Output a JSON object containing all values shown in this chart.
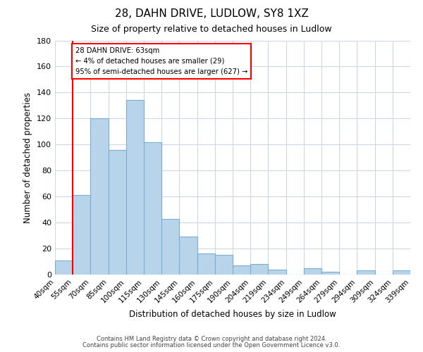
{
  "title": "28, DAHN DRIVE, LUDLOW, SY8 1XZ",
  "subtitle": "Size of property relative to detached houses in Ludlow",
  "xlabel": "Distribution of detached houses by size in Ludlow",
  "ylabel": "Number of detached properties",
  "tick_labels": [
    "40sqm",
    "55sqm",
    "70sqm",
    "85sqm",
    "100sqm",
    "115sqm",
    "130sqm",
    "145sqm",
    "160sqm",
    "175sqm",
    "190sqm",
    "204sqm",
    "219sqm",
    "234sqm",
    "249sqm",
    "264sqm",
    "279sqm",
    "294sqm",
    "309sqm",
    "324sqm",
    "339sqm"
  ],
  "values": [
    11,
    61,
    120,
    96,
    134,
    102,
    43,
    29,
    16,
    15,
    7,
    8,
    4,
    0,
    5,
    2,
    0,
    3,
    0,
    3
  ],
  "bar_color": "#b8d4ea",
  "bar_edge_color": "#7aafd4",
  "ylim": [
    0,
    180
  ],
  "yticks": [
    0,
    20,
    40,
    60,
    80,
    100,
    120,
    140,
    160,
    180
  ],
  "redline_x": 1,
  "marker_label": "28 DAHN DRIVE: 63sqm",
  "annotation_line1": "← 4% of detached houses are smaller (29)",
  "annotation_line2": "95% of semi-detached houses are larger (627) →",
  "footer1": "Contains HM Land Registry data © Crown copyright and database right 2024.",
  "footer2": "Contains public sector information licensed under the Open Government Licence v3.0.",
  "background_color": "#ffffff",
  "grid_color": "#ccd8e8"
}
